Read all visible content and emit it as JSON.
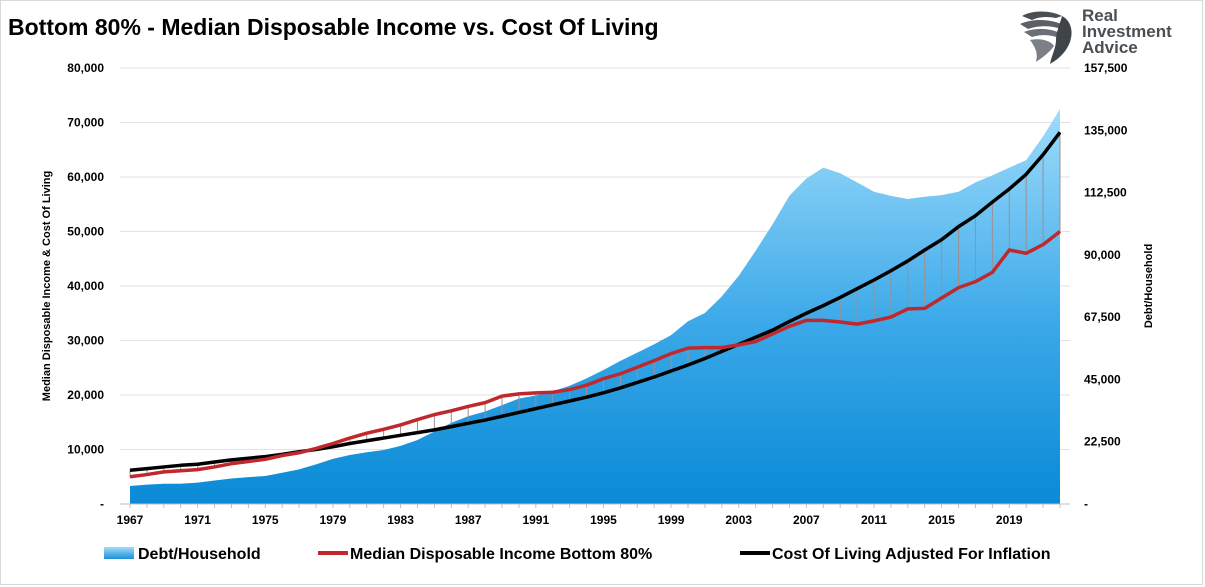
{
  "title": "Bottom 80% - Median Disposable Income vs. Cost Of Living",
  "logo": {
    "lines": [
      "Real",
      "Investment",
      "Advice"
    ],
    "icon": "eagle-head-icon",
    "color": "#4a4f54"
  },
  "chart_data": {
    "type": "line",
    "x": [
      1967,
      1968,
      1969,
      1970,
      1971,
      1972,
      1973,
      1974,
      1975,
      1976,
      1977,
      1978,
      1979,
      1980,
      1981,
      1982,
      1983,
      1984,
      1985,
      1986,
      1987,
      1988,
      1989,
      1990,
      1991,
      1992,
      1993,
      1994,
      1995,
      1996,
      1997,
      1998,
      1999,
      2000,
      2001,
      2002,
      2003,
      2004,
      2005,
      2006,
      2007,
      2008,
      2009,
      2010,
      2011,
      2012,
      2013,
      2014,
      2015,
      2016,
      2017,
      2018,
      2019,
      2020,
      2021,
      2022
    ],
    "x_tick_labels": [
      "1967",
      "1971",
      "1975",
      "1979",
      "1983",
      "1987",
      "1991",
      "1995",
      "1999",
      "2003",
      "2007",
      "2011",
      "2015",
      "2019"
    ],
    "y_left": {
      "label": "Median Disposable Income & Cost Of Living",
      "ylim": [
        0,
        80000
      ],
      "tick_labels": [
        "-",
        "10,000",
        "20,000",
        "30,000",
        "40,000",
        "50,000",
        "60,000",
        "70,000",
        "80,000"
      ]
    },
    "y_right": {
      "label": "Debt/Household",
      "ylim": [
        0,
        157500
      ],
      "tick_labels": [
        "-",
        "22,500",
        "45,000",
        "67,500",
        "90,000",
        "112,500",
        "135,000",
        "157,500"
      ]
    },
    "series": [
      {
        "name": "Debt/Household",
        "kind": "area",
        "axis": "right",
        "color": "#1e90d8",
        "color_top": "#9fdcfb",
        "values": [
          6500,
          7000,
          7300,
          7300,
          7700,
          8500,
          9200,
          9700,
          10100,
          11300,
          12500,
          14300,
          16300,
          17700,
          18700,
          19500,
          21000,
          23100,
          26200,
          29300,
          31700,
          33400,
          35700,
          38100,
          39200,
          40700,
          42700,
          45400,
          48400,
          51700,
          54700,
          57700,
          61000,
          66000,
          69000,
          75000,
          82400,
          91500,
          101000,
          111400,
          117600,
          121500,
          119500,
          116200,
          112800,
          111300,
          110200,
          111000,
          111600,
          112800,
          116200,
          118700,
          121500,
          124200,
          132800,
          142700
        ]
      },
      {
        "name": "Median Disposable Income Bottom 80%",
        "kind": "line",
        "axis": "left",
        "color": "#c0282d",
        "values": [
          5000,
          5400,
          5900,
          6100,
          6300,
          6800,
          7400,
          7800,
          8200,
          8900,
          9400,
          10200,
          11100,
          12100,
          13000,
          13700,
          14500,
          15500,
          16400,
          17100,
          17900,
          18600,
          19800,
          20200,
          20400,
          20500,
          21000,
          21800,
          23000,
          23900,
          25100,
          26300,
          27600,
          28600,
          28700,
          28700,
          29200,
          29800,
          31200,
          32600,
          33700,
          33700,
          33400,
          33000,
          33600,
          34300,
          35800,
          35900,
          37800,
          39700,
          40800,
          42500,
          46600,
          46000,
          47600,
          50000
        ]
      },
      {
        "name": "Cost Of Living Adjusted For Inflation",
        "kind": "line",
        "axis": "left",
        "color": "#000000",
        "values": [
          6200,
          6500,
          6800,
          7100,
          7300,
          7700,
          8100,
          8400,
          8700,
          9100,
          9600,
          10000,
          10500,
          11100,
          11600,
          12100,
          12600,
          13100,
          13600,
          14200,
          14800,
          15400,
          16100,
          16800,
          17500,
          18200,
          18900,
          19600,
          20400,
          21300,
          22300,
          23300,
          24400,
          25500,
          26700,
          28000,
          29300,
          30600,
          31900,
          33500,
          35000,
          36400,
          37900,
          39500,
          41100,
          42800,
          44600,
          46600,
          48500,
          50900,
          52900,
          55400,
          57800,
          60500,
          64100,
          68200
        ]
      }
    ],
    "legend_position": "bottom",
    "grid": "horizontal",
    "annotations": "vertical drop lines between cost of living and income lines"
  }
}
